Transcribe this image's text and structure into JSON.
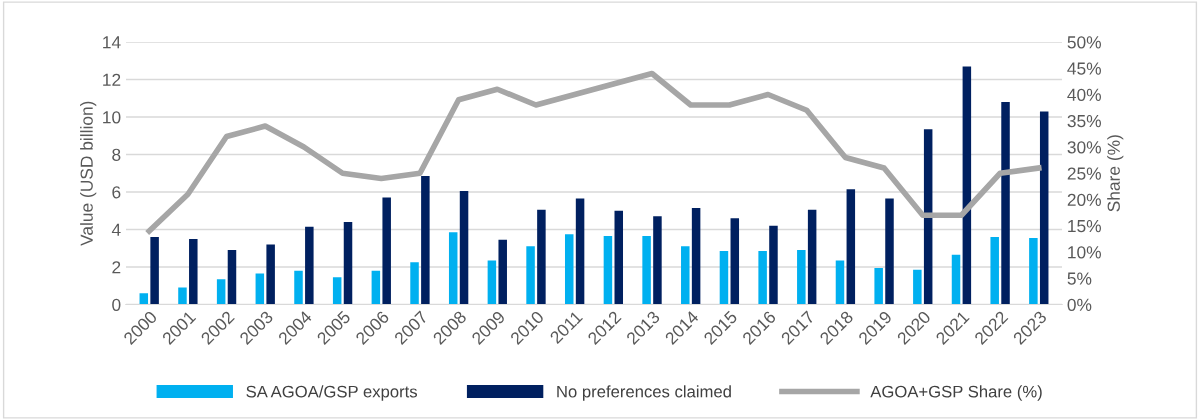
{
  "chart_data": {
    "type": "bar",
    "categories": [
      "2000",
      "2001",
      "2002",
      "2003",
      "2004",
      "2005",
      "2006",
      "2007",
      "2008",
      "2009",
      "2010",
      "2011",
      "2012",
      "2013",
      "2014",
      "2015",
      "2016",
      "2017",
      "2018",
      "2019",
      "2020",
      "2021",
      "2022",
      "2023"
    ],
    "series": [
      {
        "name": "SA AGOA/GSP exports",
        "color": "#00b0f0",
        "values": [
          0.6,
          0.9,
          1.35,
          1.65,
          1.8,
          1.45,
          1.8,
          2.25,
          3.85,
          2.35,
          3.1,
          3.75,
          3.65,
          3.65,
          3.1,
          2.85,
          2.85,
          2.9,
          2.35,
          1.95,
          1.85,
          2.65,
          3.6,
          3.55
        ]
      },
      {
        "name": "No preferences claimed",
        "color": "#002060",
        "values": [
          3.6,
          3.5,
          2.9,
          3.2,
          4.15,
          4.4,
          5.7,
          6.85,
          6.05,
          3.45,
          5.05,
          5.65,
          5.0,
          4.7,
          5.15,
          4.6,
          4.2,
          5.05,
          6.15,
          5.65,
          9.35,
          12.7,
          10.8,
          10.3
        ]
      },
      {
        "name": "AGOA+GSP Share (%)",
        "type": "line",
        "axis": "y2",
        "color": "#a6a6a6",
        "values": [
          14,
          21,
          32,
          34,
          30,
          25,
          24,
          25,
          39,
          41,
          38,
          40,
          42,
          44,
          38,
          38,
          40,
          37,
          28,
          26,
          17,
          17,
          25,
          26
        ]
      }
    ],
    "ylabel": "Value (USD billion)",
    "y2label": "Share (%)",
    "ylim": [
      0,
      14
    ],
    "yticks": [
      0,
      2,
      4,
      6,
      8,
      10,
      12,
      14
    ],
    "y2lim": [
      0,
      50
    ],
    "y2ticks": [
      {
        "value": 0,
        "label": "0%"
      },
      {
        "value": 5,
        "label": "5%"
      },
      {
        "value": 10,
        "label": "10%"
      },
      {
        "value": 15,
        "label": "15%"
      },
      {
        "value": 20,
        "label": "20%"
      },
      {
        "value": 25,
        "label": "25%"
      },
      {
        "value": 30,
        "label": "30%"
      },
      {
        "value": 35,
        "label": "35%"
      },
      {
        "value": 40,
        "label": "40%"
      },
      {
        "value": 45,
        "label": "45%"
      },
      {
        "value": 50,
        "label": "50%"
      }
    ],
    "grid": "y",
    "legend": "bottom",
    "marker": "none",
    "line_style": "solid"
  }
}
